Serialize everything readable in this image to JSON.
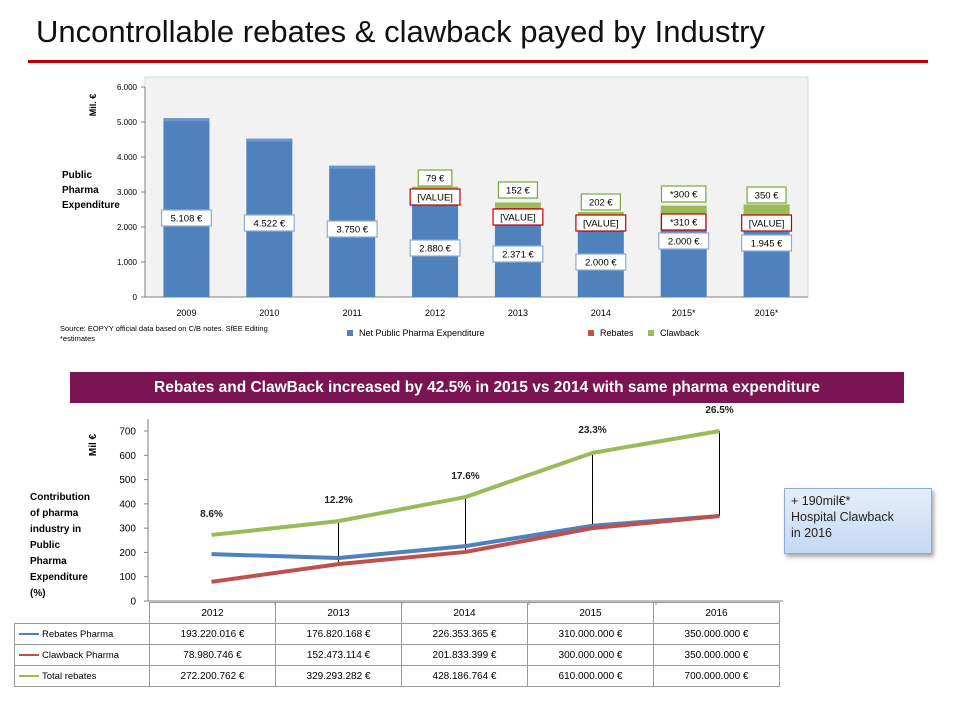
{
  "title": "Uncontrollable rebates & clawback payed by Industry",
  "colors": {
    "accent_rule": "#c00000",
    "net_expenditure": "#4f81bd",
    "rebates": "#c0504d",
    "clawback": "#9bbb59",
    "banner_bg": "#7b1452",
    "rebates_line": "#4f81bd",
    "clawback_line": "#c0504d",
    "total_line": "#9bbb59"
  },
  "top_chart": {
    "ylabel": "Mil. €",
    "side_label": [
      "Public",
      "Pharma",
      "Expenditure"
    ],
    "y_ticks": [
      "0",
      "1.000",
      "2.000",
      "3.000",
      "4.000",
      "5.000",
      "6.000"
    ],
    "legend": [
      "Net Public Pharma Expenditure",
      "Rebates",
      "Clawback"
    ],
    "source_note": [
      "Source: EOPYY official data based on C/B notes. SfEE Editing",
      "*estimates"
    ]
  },
  "banner": "Rebates and ClawBack increased by 42.5% in 2015 vs 2014 with same pharma expenditure",
  "bottom_chart": {
    "ylabel": "Mil €",
    "side_label": [
      "Contribution",
      "of pharma",
      "industry in",
      "Public",
      "Pharma",
      "Expenditure",
      "(%)"
    ],
    "y_ticks": [
      "0",
      "100",
      "200",
      "300",
      "400",
      "500",
      "600",
      "700"
    ]
  },
  "note_box": [
    "+ 190mil€*",
    "Hospital Clawback",
    "in 2016"
  ],
  "data_table": {
    "columns": [
      "2012",
      "2013",
      "2014",
      "2015",
      "2016"
    ],
    "rows": [
      {
        "label": "Rebates Pharma",
        "values": [
          "193.220.016 €",
          "176.820.168 €",
          "226.353.365 €",
          "310.000.000 €",
          "350.000.000 €"
        ]
      },
      {
        "label": "Clawback Pharma",
        "values": [
          "78.980.746 €",
          "152.473.114 €",
          "201.833.399 €",
          "300.000.000 €",
          "350.000.000 €"
        ]
      },
      {
        "label": "Total rebates",
        "values": [
          "272.200.762 €",
          "329.293.282 €",
          "428.186.764 €",
          "610.000.000 €",
          "700.000.000 €"
        ]
      }
    ]
  },
  "chart_data": [
    {
      "type": "bar",
      "stacked": true,
      "categories": [
        "2009",
        "2010",
        "2011",
        "2012",
        "2013",
        "2014",
        "2015*",
        "2016*"
      ],
      "ylabel": "Mil. €",
      "ylim": [
        0,
        6000
      ],
      "grid": false,
      "legend": "bottom",
      "series": [
        {
          "name": "Net Public Pharma Expenditure",
          "values": [
            5108,
            4522,
            3750,
            2880,
            2371,
            2000,
            2000,
            1945
          ],
          "labels": [
            "5.108 €",
            "4.522 €",
            "3.750 €",
            "2.880 €",
            "2.371 €",
            "2.000 €",
            "2.000 €",
            "1.945 €"
          ]
        },
        {
          "name": "Rebates",
          "values": [
            null,
            null,
            null,
            193,
            177,
            226,
            310,
            350
          ],
          "labels": [
            "",
            "",
            "",
            "[VALUE]",
            "[VALUE]",
            "[VALUE]",
            "*310 €",
            "[VALUE]"
          ]
        },
        {
          "name": "Clawback",
          "values": [
            null,
            null,
            null,
            79,
            152,
            202,
            300,
            350
          ],
          "labels": [
            "",
            "",
            "",
            "79 €",
            "152 €",
            "202 €",
            "*300 €",
            "350 €"
          ]
        }
      ]
    },
    {
      "type": "line",
      "categories": [
        "2012",
        "2013",
        "2014",
        "2015",
        "2016"
      ],
      "ylabel": "Mil €",
      "ylim": [
        0,
        700
      ],
      "grid": false,
      "series": [
        {
          "name": "Rebates Pharma",
          "values": [
            193,
            177,
            226,
            310,
            350
          ]
        },
        {
          "name": "Clawback Pharma",
          "values": [
            79,
            152,
            202,
            300,
            350
          ]
        },
        {
          "name": "Total rebates",
          "values": [
            272,
            329,
            428,
            610,
            700
          ]
        }
      ],
      "annotations": [
        "8.6%",
        "12.2%",
        "17.6%",
        "23.3%",
        "26.5%"
      ]
    }
  ]
}
